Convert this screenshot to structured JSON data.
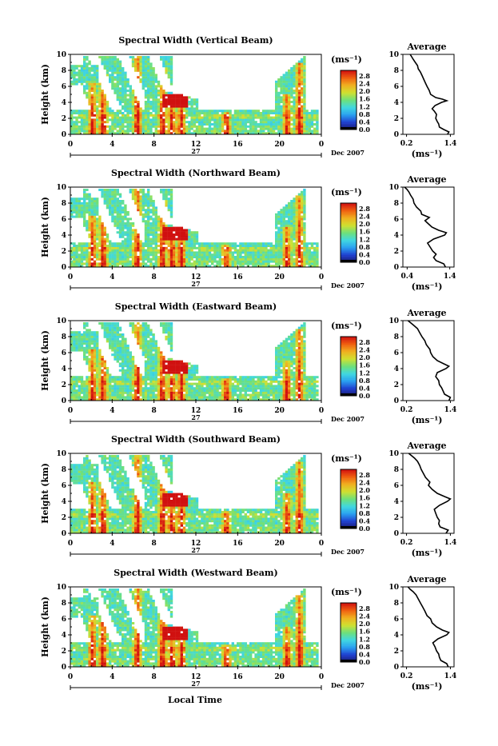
{
  "panels": [
    {
      "title": "Spectral Width (Vertical Beam)",
      "avg_title": "Average",
      "avg_xticks": [
        "0.2",
        "1.4"
      ],
      "profile": [
        [
          1.32,
          0
        ],
        [
          1.36,
          0.3
        ],
        [
          1.22,
          0.6
        ],
        [
          1.1,
          0.9
        ],
        [
          1.08,
          1.3
        ],
        [
          1.04,
          1.6
        ],
        [
          1.0,
          2.0
        ],
        [
          1.02,
          2.5
        ],
        [
          0.96,
          2.9
        ],
        [
          0.9,
          3.2
        ],
        [
          0.98,
          3.6
        ],
        [
          1.16,
          4.0
        ],
        [
          1.3,
          4.2
        ],
        [
          1.18,
          4.4
        ],
        [
          1.0,
          4.6
        ],
        [
          0.86,
          5.0
        ],
        [
          0.82,
          5.5
        ],
        [
          0.76,
          6.0
        ],
        [
          0.72,
          6.4
        ],
        [
          0.66,
          7.0
        ],
        [
          0.62,
          7.4
        ],
        [
          0.58,
          7.8
        ],
        [
          0.52,
          8.2
        ],
        [
          0.5,
          8.6
        ],
        [
          0.44,
          9.0
        ],
        [
          0.38,
          9.4
        ],
        [
          0.34,
          9.7
        ],
        [
          0.3,
          10.0
        ]
      ]
    },
    {
      "title": "Spectral Width (Northward Beam)",
      "avg_title": "Average",
      "avg_xticks": [
        "0.4",
        "1.4"
      ],
      "profile": [
        [
          1.3,
          0
        ],
        [
          1.26,
          0.4
        ],
        [
          1.08,
          0.8
        ],
        [
          1.02,
          1.2
        ],
        [
          1.08,
          1.6
        ],
        [
          1.0,
          2.0
        ],
        [
          0.94,
          2.5
        ],
        [
          0.88,
          3.0
        ],
        [
          1.02,
          3.5
        ],
        [
          1.28,
          4.0
        ],
        [
          1.32,
          4.3
        ],
        [
          1.14,
          4.6
        ],
        [
          0.98,
          5.0
        ],
        [
          0.88,
          5.5
        ],
        [
          0.82,
          5.8
        ],
        [
          0.92,
          6.2
        ],
        [
          0.74,
          6.6
        ],
        [
          0.72,
          7.0
        ],
        [
          0.62,
          7.5
        ],
        [
          0.56,
          8.0
        ],
        [
          0.54,
          8.5
        ],
        [
          0.48,
          9.0
        ],
        [
          0.44,
          9.4
        ],
        [
          0.4,
          9.7
        ],
        [
          0.34,
          10.0
        ]
      ]
    },
    {
      "title": "Spectral Width (Eastward Beam)",
      "avg_title": "Average",
      "avg_xticks": [
        "0.2",
        "1.4"
      ],
      "profile": [
        [
          1.36,
          0
        ],
        [
          1.4,
          0.4
        ],
        [
          1.24,
          0.8
        ],
        [
          1.2,
          1.2
        ],
        [
          1.16,
          1.6
        ],
        [
          1.1,
          2.0
        ],
        [
          1.08,
          2.5
        ],
        [
          1.0,
          3.0
        ],
        [
          1.04,
          3.5
        ],
        [
          1.28,
          4.0
        ],
        [
          1.36,
          4.3
        ],
        [
          1.22,
          4.6
        ],
        [
          1.04,
          5.0
        ],
        [
          0.92,
          5.5
        ],
        [
          0.86,
          6.0
        ],
        [
          0.84,
          6.4
        ],
        [
          0.74,
          7.0
        ],
        [
          0.7,
          7.5
        ],
        [
          0.62,
          8.0
        ],
        [
          0.56,
          8.5
        ],
        [
          0.5,
          9.0
        ],
        [
          0.4,
          9.4
        ],
        [
          0.32,
          9.7
        ],
        [
          0.24,
          10.0
        ]
      ]
    },
    {
      "title": "Spectral Width (Southward Beam)",
      "avg_title": "Average",
      "avg_xticks": [
        "0.2",
        "1.4"
      ],
      "profile": [
        [
          1.28,
          0
        ],
        [
          1.34,
          0.4
        ],
        [
          1.12,
          0.8
        ],
        [
          1.08,
          1.2
        ],
        [
          1.1,
          1.6
        ],
        [
          1.04,
          2.0
        ],
        [
          1.0,
          2.5
        ],
        [
          0.96,
          3.0
        ],
        [
          1.1,
          3.5
        ],
        [
          1.32,
          4.0
        ],
        [
          1.4,
          4.3
        ],
        [
          1.24,
          4.6
        ],
        [
          1.04,
          5.0
        ],
        [
          0.9,
          5.5
        ],
        [
          0.8,
          6.0
        ],
        [
          0.84,
          6.4
        ],
        [
          0.72,
          7.0
        ],
        [
          0.66,
          7.5
        ],
        [
          0.6,
          8.0
        ],
        [
          0.56,
          8.5
        ],
        [
          0.5,
          9.0
        ],
        [
          0.42,
          9.4
        ],
        [
          0.34,
          9.7
        ],
        [
          0.26,
          10.0
        ]
      ]
    },
    {
      "title": "Spectral Width (Westward Beam)",
      "avg_title": "Average",
      "avg_xticks": [
        "0.2",
        "1.4"
      ],
      "profile": [
        [
          1.34,
          0
        ],
        [
          1.3,
          0.4
        ],
        [
          1.14,
          0.8
        ],
        [
          1.1,
          1.2
        ],
        [
          1.08,
          1.6
        ],
        [
          1.02,
          2.0
        ],
        [
          0.98,
          2.5
        ],
        [
          0.92,
          3.0
        ],
        [
          1.06,
          3.5
        ],
        [
          1.3,
          4.0
        ],
        [
          1.36,
          4.3
        ],
        [
          1.18,
          4.6
        ],
        [
          1.02,
          5.0
        ],
        [
          0.9,
          5.5
        ],
        [
          0.86,
          6.0
        ],
        [
          0.76,
          6.4
        ],
        [
          0.7,
          7.0
        ],
        [
          0.64,
          7.5
        ],
        [
          0.58,
          8.0
        ],
        [
          0.52,
          8.5
        ],
        [
          0.46,
          9.0
        ],
        [
          0.38,
          9.4
        ],
        [
          0.3,
          9.7
        ],
        [
          0.24,
          10.0
        ]
      ]
    }
  ],
  "y_axis_label": "Height (km)",
  "x_ticks": [
    "0",
    "4",
    "8",
    "12",
    "16",
    "20",
    "0"
  ],
  "date_day": "27",
  "date_label": "Dec 2007",
  "colorbar_unit": "(ms⁻¹)",
  "colorbar_ticks": [
    "2.8",
    "2.4",
    "2.0",
    "1.6",
    "1.2",
    "0.8",
    "0.4",
    "0.0"
  ],
  "avg_unit": "(ms⁻¹)",
  "y_ticks": [
    "0",
    "2",
    "4",
    "6",
    "8",
    "10"
  ],
  "x_axis_label": "Local Time",
  "chart_data": {
    "type": "heatmap",
    "x_range": [
      0,
      24
    ],
    "x_unit": "hours (local time)",
    "y_range": [
      0,
      10
    ],
    "y_unit": "km",
    "color_range": [
      0.0,
      2.8
    ],
    "color_scale": [
      "#1a1a6e",
      "#1f3fd0",
      "#2aa0f0",
      "#40d8e0",
      "#6ee07a",
      "#d0e030",
      "#f0b020",
      "#f06010",
      "#d01010"
    ]
  }
}
